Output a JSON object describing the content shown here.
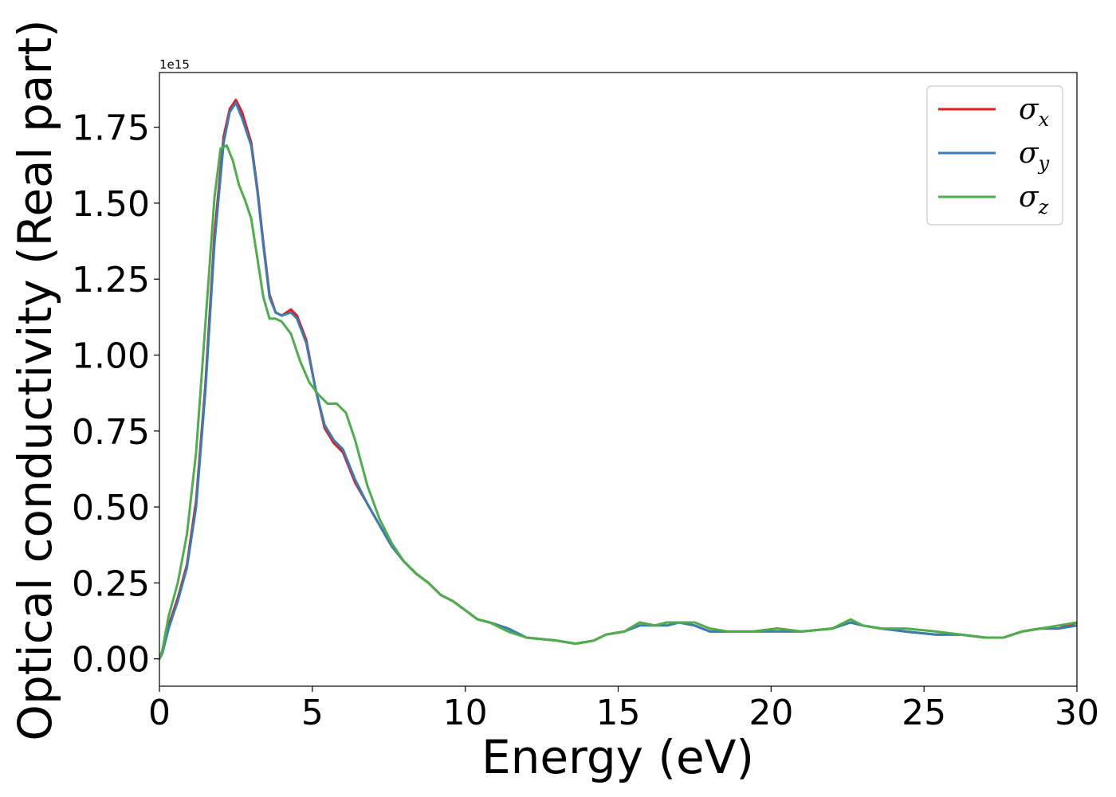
{
  "chart_data": {
    "type": "line",
    "title": "",
    "xlabel": "Energy (eV)",
    "ylabel": "Optical conductivity (Real part)",
    "y_offset_label": "1e15",
    "xlim": [
      0,
      30
    ],
    "ylim": [
      -0.09,
      1.93
    ],
    "x_ticks": [
      0,
      5,
      10,
      15,
      20,
      25,
      30
    ],
    "x_tick_labels": [
      "0",
      "5",
      "10",
      "15",
      "20",
      "25",
      "30"
    ],
    "y_ticks": [
      0.0,
      0.25,
      0.5,
      0.75,
      1.0,
      1.25,
      1.5,
      1.75
    ],
    "y_tick_labels": [
      "0.00",
      "0.25",
      "0.50",
      "0.75",
      "1.00",
      "1.25",
      "1.50",
      "1.75"
    ],
    "grid": false,
    "legend_position": "top-right",
    "series": [
      {
        "name": "σx",
        "legend_base": "σ",
        "legend_sub": "x",
        "color": "#e41a1c",
        "points": [
          [
            0,
            0
          ],
          [
            0.1,
            0.02
          ],
          [
            0.3,
            0.11
          ],
          [
            0.6,
            0.2
          ],
          [
            0.9,
            0.31
          ],
          [
            1.2,
            0.52
          ],
          [
            1.5,
            0.9
          ],
          [
            1.8,
            1.4
          ],
          [
            2.1,
            1.72
          ],
          [
            2.3,
            1.81
          ],
          [
            2.5,
            1.84
          ],
          [
            2.7,
            1.8
          ],
          [
            3.0,
            1.7
          ],
          [
            3.2,
            1.55
          ],
          [
            3.4,
            1.37
          ],
          [
            3.6,
            1.2
          ],
          [
            3.8,
            1.14
          ],
          [
            4.0,
            1.13
          ],
          [
            4.3,
            1.15
          ],
          [
            4.5,
            1.13
          ],
          [
            4.8,
            1.05
          ],
          [
            5.1,
            0.89
          ],
          [
            5.4,
            0.76
          ],
          [
            5.7,
            0.71
          ],
          [
            6.0,
            0.68
          ],
          [
            6.4,
            0.58
          ],
          [
            6.8,
            0.51
          ],
          [
            7.2,
            0.44
          ],
          [
            7.6,
            0.37
          ],
          [
            8.0,
            0.32
          ],
          [
            8.4,
            0.28
          ],
          [
            8.8,
            0.25
          ],
          [
            9.2,
            0.21
          ],
          [
            9.6,
            0.19
          ],
          [
            10.0,
            0.16
          ],
          [
            10.4,
            0.13
          ],
          [
            10.8,
            0.12
          ],
          [
            11.4,
            0.1
          ],
          [
            12.0,
            0.07
          ],
          [
            13.0,
            0.06
          ],
          [
            13.6,
            0.05
          ],
          [
            14.2,
            0.06
          ],
          [
            14.6,
            0.08
          ],
          [
            15.2,
            0.09
          ],
          [
            15.7,
            0.12
          ],
          [
            16.2,
            0.11
          ],
          [
            16.6,
            0.12
          ],
          [
            17.0,
            0.12
          ],
          [
            17.5,
            0.11
          ],
          [
            18.0,
            0.09
          ],
          [
            18.6,
            0.09
          ],
          [
            19.4,
            0.09
          ],
          [
            20.2,
            0.1
          ],
          [
            21.0,
            0.09
          ],
          [
            22.0,
            0.1
          ],
          [
            22.6,
            0.12
          ],
          [
            23.0,
            0.11
          ],
          [
            23.6,
            0.1
          ],
          [
            24.4,
            0.09
          ],
          [
            25.4,
            0.08
          ],
          [
            26.2,
            0.08
          ],
          [
            27.0,
            0.07
          ],
          [
            27.6,
            0.07
          ],
          [
            28.2,
            0.09
          ],
          [
            28.8,
            0.1
          ],
          [
            29.4,
            0.1
          ],
          [
            30.0,
            0.12
          ]
        ]
      },
      {
        "name": "σy",
        "legend_base": "σ",
        "legend_sub": "y",
        "color": "#377eb8",
        "points": [
          [
            0,
            0
          ],
          [
            0.1,
            0.02
          ],
          [
            0.3,
            0.1
          ],
          [
            0.6,
            0.19
          ],
          [
            0.9,
            0.3
          ],
          [
            1.2,
            0.5
          ],
          [
            1.5,
            0.88
          ],
          [
            1.8,
            1.37
          ],
          [
            2.1,
            1.7
          ],
          [
            2.3,
            1.8
          ],
          [
            2.5,
            1.83
          ],
          [
            2.7,
            1.78
          ],
          [
            3.0,
            1.69
          ],
          [
            3.2,
            1.54
          ],
          [
            3.4,
            1.36
          ],
          [
            3.6,
            1.19
          ],
          [
            3.8,
            1.14
          ],
          [
            4.0,
            1.13
          ],
          [
            4.3,
            1.14
          ],
          [
            4.5,
            1.12
          ],
          [
            4.8,
            1.04
          ],
          [
            5.1,
            0.89
          ],
          [
            5.4,
            0.77
          ],
          [
            5.7,
            0.72
          ],
          [
            6.0,
            0.69
          ],
          [
            6.4,
            0.59
          ],
          [
            6.8,
            0.51
          ],
          [
            7.2,
            0.44
          ],
          [
            7.6,
            0.37
          ],
          [
            8.0,
            0.32
          ],
          [
            8.4,
            0.28
          ],
          [
            8.8,
            0.25
          ],
          [
            9.2,
            0.21
          ],
          [
            9.6,
            0.19
          ],
          [
            10.0,
            0.16
          ],
          [
            10.4,
            0.13
          ],
          [
            10.8,
            0.12
          ],
          [
            11.4,
            0.1
          ],
          [
            12.0,
            0.07
          ],
          [
            13.0,
            0.06
          ],
          [
            13.6,
            0.05
          ],
          [
            14.2,
            0.06
          ],
          [
            14.6,
            0.08
          ],
          [
            15.2,
            0.09
          ],
          [
            15.7,
            0.11
          ],
          [
            16.2,
            0.11
          ],
          [
            16.6,
            0.11
          ],
          [
            17.0,
            0.12
          ],
          [
            17.5,
            0.11
          ],
          [
            18.0,
            0.09
          ],
          [
            18.6,
            0.09
          ],
          [
            19.4,
            0.09
          ],
          [
            20.2,
            0.09
          ],
          [
            21.0,
            0.09
          ],
          [
            22.0,
            0.1
          ],
          [
            22.6,
            0.12
          ],
          [
            23.0,
            0.11
          ],
          [
            23.6,
            0.1
          ],
          [
            24.4,
            0.09
          ],
          [
            25.4,
            0.08
          ],
          [
            26.2,
            0.08
          ],
          [
            27.0,
            0.07
          ],
          [
            27.6,
            0.07
          ],
          [
            28.2,
            0.09
          ],
          [
            28.8,
            0.1
          ],
          [
            29.4,
            0.1
          ],
          [
            30.0,
            0.11
          ]
        ]
      },
      {
        "name": "σz",
        "legend_base": "σ",
        "legend_sub": "z",
        "color": "#4daf4a",
        "points": [
          [
            0,
            0
          ],
          [
            0.1,
            0.03
          ],
          [
            0.3,
            0.14
          ],
          [
            0.6,
            0.25
          ],
          [
            0.9,
            0.41
          ],
          [
            1.2,
            0.68
          ],
          [
            1.5,
            1.1
          ],
          [
            1.8,
            1.52
          ],
          [
            2.0,
            1.68
          ],
          [
            2.2,
            1.69
          ],
          [
            2.4,
            1.64
          ],
          [
            2.6,
            1.56
          ],
          [
            2.8,
            1.51
          ],
          [
            3.0,
            1.45
          ],
          [
            3.2,
            1.32
          ],
          [
            3.4,
            1.19
          ],
          [
            3.6,
            1.12
          ],
          [
            3.8,
            1.12
          ],
          [
            4.0,
            1.11
          ],
          [
            4.3,
            1.07
          ],
          [
            4.6,
            0.98
          ],
          [
            4.9,
            0.91
          ],
          [
            5.2,
            0.87
          ],
          [
            5.5,
            0.84
          ],
          [
            5.8,
            0.84
          ],
          [
            6.1,
            0.81
          ],
          [
            6.4,
            0.72
          ],
          [
            6.8,
            0.57
          ],
          [
            7.2,
            0.46
          ],
          [
            7.6,
            0.38
          ],
          [
            8.0,
            0.32
          ],
          [
            8.4,
            0.28
          ],
          [
            8.8,
            0.25
          ],
          [
            9.2,
            0.21
          ],
          [
            9.6,
            0.19
          ],
          [
            10.0,
            0.16
          ],
          [
            10.4,
            0.13
          ],
          [
            10.8,
            0.12
          ],
          [
            11.4,
            0.09
          ],
          [
            12.0,
            0.07
          ],
          [
            13.0,
            0.06
          ],
          [
            13.6,
            0.05
          ],
          [
            14.2,
            0.06
          ],
          [
            14.6,
            0.08
          ],
          [
            15.2,
            0.09
          ],
          [
            15.7,
            0.12
          ],
          [
            16.2,
            0.11
          ],
          [
            16.6,
            0.12
          ],
          [
            17.0,
            0.12
          ],
          [
            17.5,
            0.12
          ],
          [
            18.0,
            0.1
          ],
          [
            18.6,
            0.09
          ],
          [
            19.4,
            0.09
          ],
          [
            20.2,
            0.1
          ],
          [
            21.0,
            0.09
          ],
          [
            22.0,
            0.1
          ],
          [
            22.6,
            0.13
          ],
          [
            23.0,
            0.11
          ],
          [
            23.6,
            0.1
          ],
          [
            24.4,
            0.1
          ],
          [
            25.4,
            0.09
          ],
          [
            26.2,
            0.08
          ],
          [
            27.0,
            0.07
          ],
          [
            27.6,
            0.07
          ],
          [
            28.2,
            0.09
          ],
          [
            28.8,
            0.1
          ],
          [
            29.4,
            0.11
          ],
          [
            30.0,
            0.12
          ]
        ]
      }
    ]
  }
}
